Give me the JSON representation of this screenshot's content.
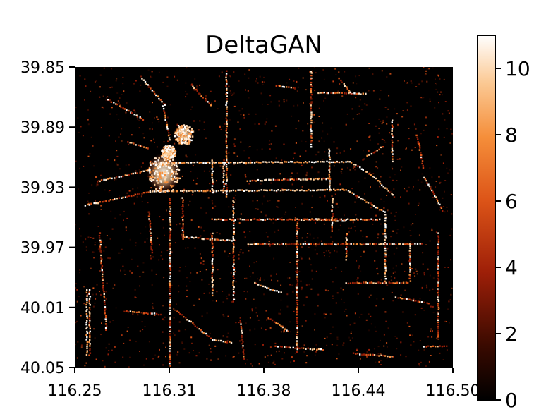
{
  "chart_data": {
    "type": "heatmap",
    "title": "DeltaGAN",
    "xlabel": "",
    "ylabel": "",
    "x_ticks": [
      "116.25",
      "116.31",
      "116.38",
      "116.44",
      "116.50"
    ],
    "y_ticks": [
      "39.85",
      "39.89",
      "39.93",
      "39.97",
      "40.01",
      "40.05"
    ],
    "xlim": [
      116.25,
      116.5
    ],
    "ylim": [
      39.85,
      40.05
    ],
    "y_axis_inverted": true,
    "colormap": "gist_heat",
    "colorbar": {
      "min": 0,
      "max": 11,
      "ticks": [
        "0",
        "2",
        "4",
        "6",
        "8",
        "10"
      ]
    },
    "background_color": "#000000",
    "grid": false,
    "legend": "none"
  }
}
